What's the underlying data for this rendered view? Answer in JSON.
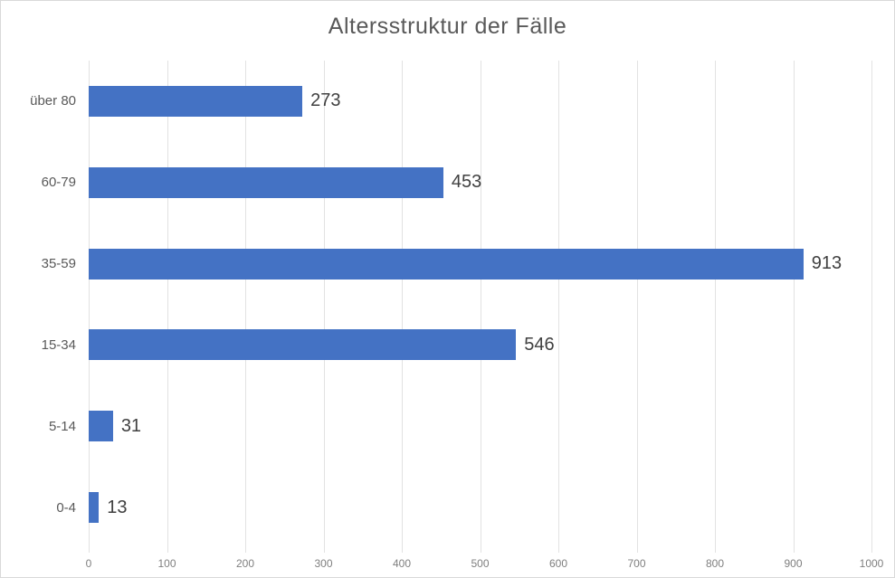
{
  "chart_data": {
    "type": "bar",
    "orientation": "horizontal",
    "title": "Altersstruktur der Fälle",
    "categories": [
      "über 80",
      "60-79",
      "35-59",
      "15-34",
      "5-14",
      "0-4"
    ],
    "values": [
      273,
      453,
      913,
      546,
      31,
      13
    ],
    "xlabel": "",
    "ylabel": "",
    "xlim": [
      0,
      1000
    ],
    "xticks": [
      0,
      100,
      200,
      300,
      400,
      500,
      600,
      700,
      800,
      900,
      1000
    ],
    "grid": "vertical",
    "legend": "none",
    "data_labels": [
      "273",
      "453",
      "913",
      "546",
      "31",
      "13"
    ],
    "colors": {
      "bar": "#4472c4",
      "title_text": "#595959",
      "category_text": "#595959",
      "tick_text": "#7f7f7f",
      "value_text": "#404040",
      "gridline": "#e2e2e2",
      "frame_border": "#d9d9d9",
      "background": "#ffffff"
    }
  }
}
